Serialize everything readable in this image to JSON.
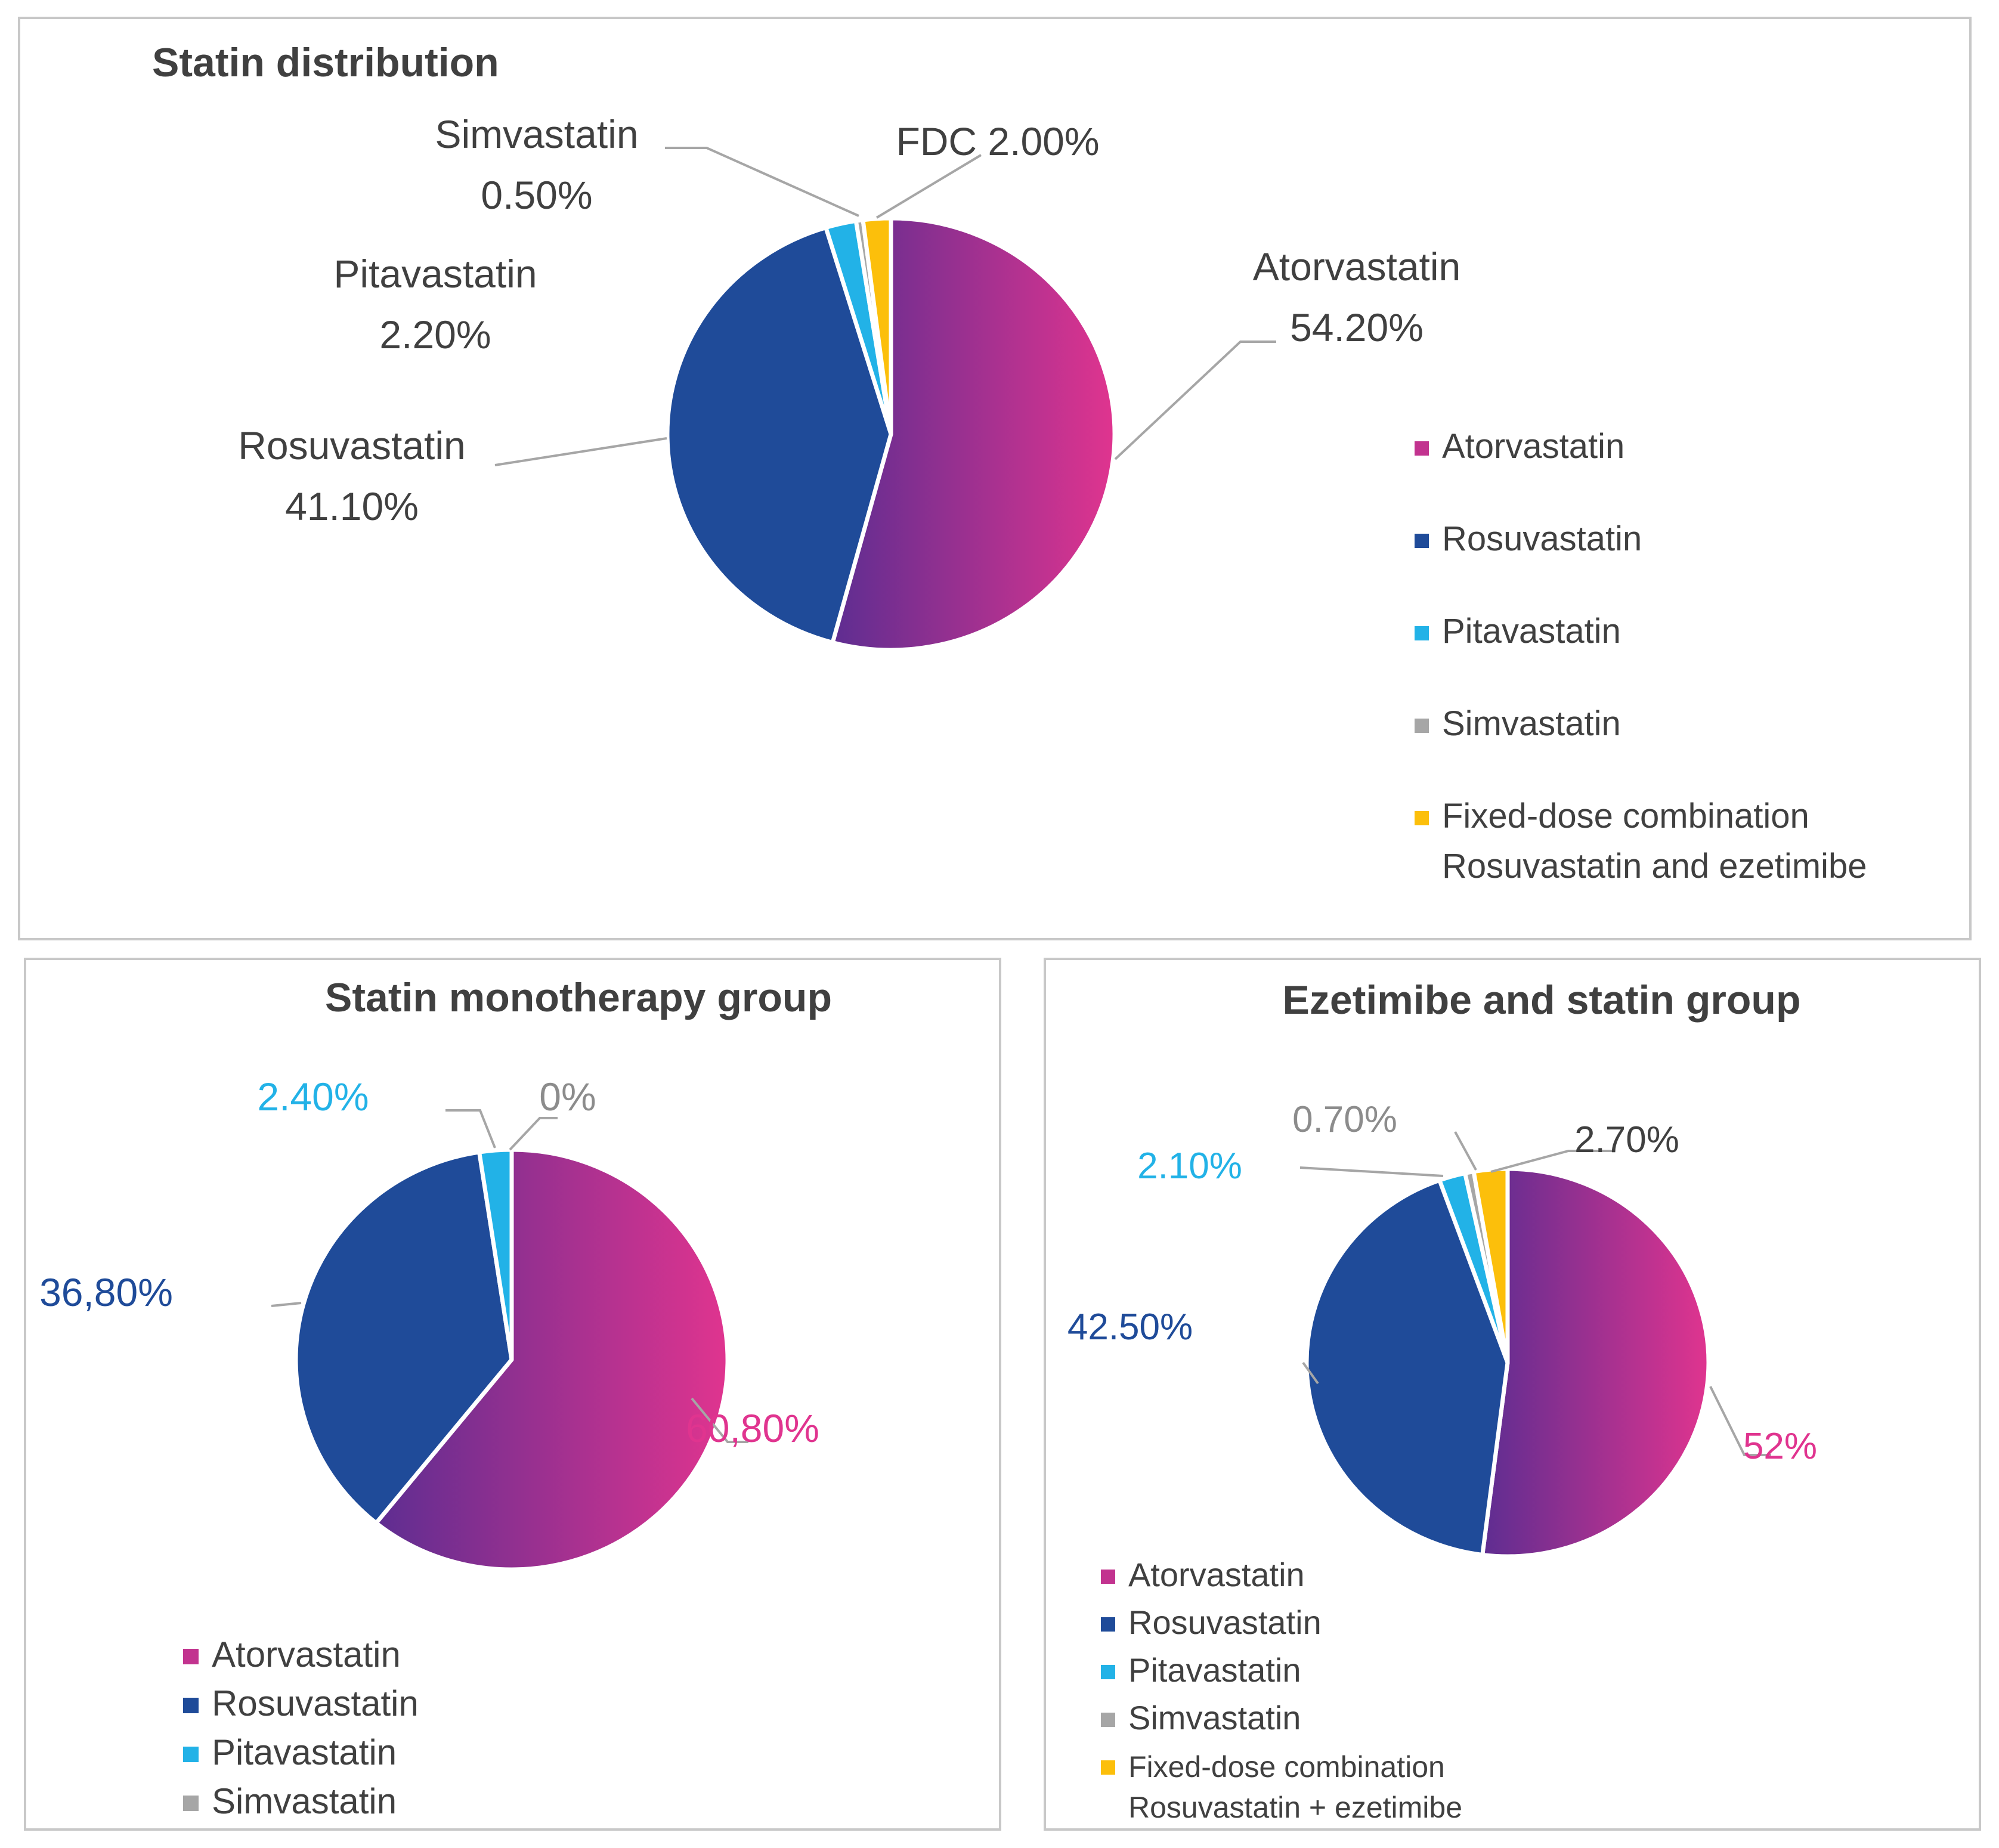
{
  "chart_data": [
    {
      "type": "pie",
      "title": "Statin distribution",
      "categories": [
        "Atorvastatin",
        "Rosuvastatin",
        "Pitavastatin",
        "Simvastatin",
        "FDC"
      ],
      "values": [
        54.2,
        41.1,
        2.2,
        0.5,
        2.0
      ],
      "data_labels": [
        [
          "Atorvastatin",
          "54.20%"
        ],
        [
          "Rosuvastatin",
          "41.10%"
        ],
        [
          "Pitavastatin",
          "2.20%"
        ],
        [
          "Simvastatin",
          "0.50%"
        ],
        [
          "FDC 2.00%"
        ]
      ],
      "legend": [
        "Atorvastatin",
        "Rosuvastatin",
        "Pitavastatin",
        "Simvastatin",
        [
          "Fixed-dose combination",
          "Rosuvastatin and ezetimibe"
        ]
      ],
      "legend_position": "right"
    },
    {
      "type": "pie",
      "title": "Statin monotherapy group",
      "categories": [
        "Atorvastatin",
        "Rosuvastatin",
        "Pitavastatin",
        "Simvastatin"
      ],
      "values": [
        60.8,
        36.8,
        2.4,
        0
      ],
      "data_labels": [
        [
          "60,80%"
        ],
        [
          "36,80%"
        ],
        [
          "2.40%"
        ],
        [
          "0%"
        ]
      ],
      "legend": [
        "Atorvastatin",
        "Rosuvastatin",
        "Pitavastatin",
        "Simvastatin"
      ],
      "legend_position": "bottom"
    },
    {
      "type": "pie",
      "title": "Ezetimibe and statin group",
      "categories": [
        "Atorvastatin",
        "Rosuvastatin",
        "Pitavastatin",
        "Simvastatin",
        "FDC"
      ],
      "values": [
        52,
        42.5,
        2.1,
        0.7,
        2.7
      ],
      "data_labels": [
        [
          "52%"
        ],
        [
          "42.50%"
        ],
        [
          "2.10%"
        ],
        [
          "0.70%"
        ],
        [
          "2.70%"
        ]
      ],
      "legend": [
        "Atorvastatin",
        "Rosuvastatin",
        "Pitavastatin",
        "Simvastatin",
        [
          "Fixed-dose combination",
          "Rosuvastatin + ezetimibe"
        ]
      ],
      "legend_position": "bottom"
    }
  ],
  "colors": {
    "atorvastatin_start": "#5e2d91",
    "atorvastatin_end": "#e0348f",
    "rosuvastatin": "#1f4b99",
    "pitavastatin": "#22b2e7",
    "simvastatin": "#a6a6a6",
    "fdc": "#fcbf0b",
    "panel_border": "#c8c8c8",
    "text": "#404040",
    "leader": "#a6a6a6"
  }
}
